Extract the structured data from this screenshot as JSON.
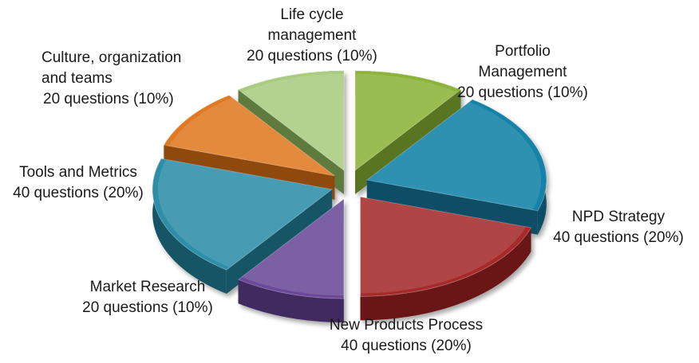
{
  "chart_data": {
    "type": "pie",
    "title": "",
    "slices": [
      {
        "name": "Portfolio Management",
        "value": 20,
        "percent": 10,
        "label_lines": [
          "Portfolio",
          "Management",
          "20 questions (10%)"
        ],
        "color": "#8db33a",
        "side": "#5a7420"
      },
      {
        "name": "NPD Strategy",
        "value": 40,
        "percent": 20,
        "label_lines": [
          "NPD Strategy",
          "40 questions (20%)"
        ],
        "color": "#1382a8",
        "side": "#0b4e66"
      },
      {
        "name": "New Products Process",
        "value": 40,
        "percent": 20,
        "label_lines": [
          "New Products Process",
          "40 questions (20%)"
        ],
        "color": "#a62b2b",
        "side": "#6a1717"
      },
      {
        "name": "Market Research",
        "value": 20,
        "percent": 10,
        "label_lines": [
          "Market Research",
          "20 questions (10%)"
        ],
        "color": "#6a4a98",
        "side": "#3f2a60"
      },
      {
        "name": "Tools and Metrics",
        "value": 40,
        "percent": 20,
        "label_lines": [
          "Tools and Metrics",
          "40 questions (20%)"
        ],
        "color": "#2d8ea8",
        "side": "#185466"
      },
      {
        "name": "Culture, organization and teams",
        "value": 20,
        "percent": 10,
        "label_lines": [
          "Culture, organization",
          "and teams",
          "20 questions  (10%)"
        ],
        "color": "#e07a22",
        "side": "#8f4810"
      },
      {
        "name": "Life cycle management",
        "value": 20,
        "percent": 10,
        "label_lines": [
          "Life cycle",
          "management",
          "20 questions (10%)"
        ],
        "color": "#a9cc80",
        "side": "#5f7a3e"
      }
    ]
  }
}
